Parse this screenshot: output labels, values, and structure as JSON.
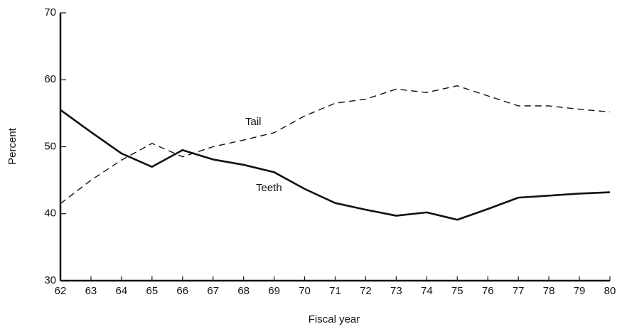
{
  "chart_data": {
    "type": "line",
    "xlabel": "Fiscal year",
    "ylabel": "Percent",
    "categories": [
      "62",
      "63",
      "64",
      "65",
      "66",
      "67",
      "68",
      "69",
      "70",
      "71",
      "72",
      "73",
      "74",
      "75",
      "76",
      "77",
      "78",
      "79",
      "80"
    ],
    "series": [
      {
        "name": "Tail",
        "color": "#111111",
        "style": "dashed",
        "values": [
          41.5,
          45,
          48,
          50.5,
          48.5,
          50,
          51,
          52.1,
          54.6,
          56.5,
          57.1,
          58.6,
          58.1,
          59.1,
          57.6,
          56.1,
          56.1,
          55.6,
          55.2
        ]
      },
      {
        "name": "Teeth",
        "color": "#111111",
        "style": "solid",
        "values": [
          55.5,
          52.2,
          49,
          47,
          49.5,
          48.1,
          47.3,
          46.2,
          43.7,
          41.6,
          40.6,
          39.7,
          40.2,
          39.1,
          40.7,
          42.4,
          42.7,
          43,
          43.2
        ]
      }
    ],
    "ylim": [
      30,
      70
    ],
    "yticks": [
      30,
      40,
      50,
      60,
      70
    ]
  }
}
